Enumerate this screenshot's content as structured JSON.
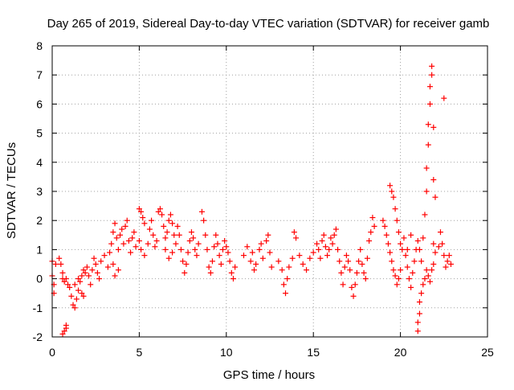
{
  "chart_data": {
    "type": "scatter",
    "title": "Day 265 of 2019, Sidereal Day-to-day VTEC variation (SDTVAR) for receiver gamb",
    "xlabel": "GPS time / hours",
    "ylabel": "SDTVAR / TECUs",
    "xlim": [
      0,
      25
    ],
    "ylim": [
      -2,
      8
    ],
    "xticks": [
      0,
      5,
      10,
      15,
      20,
      25
    ],
    "yticks": [
      -2,
      -1,
      0,
      1,
      2,
      3,
      4,
      5,
      6,
      7,
      8
    ],
    "grid": true,
    "marker": "+",
    "color": "#ff0000",
    "series": [
      {
        "name": "SDTVAR",
        "points": [
          [
            0.0,
            0.6
          ],
          [
            0.0,
            0.1
          ],
          [
            0.1,
            -0.2
          ],
          [
            0.1,
            -0.5
          ],
          [
            0.2,
            0.5
          ],
          [
            0.4,
            0.7
          ],
          [
            0.5,
            0.5
          ],
          [
            0.6,
            0.2
          ],
          [
            0.6,
            0.0
          ],
          [
            0.7,
            -0.1
          ],
          [
            0.8,
            0.0
          ],
          [
            0.9,
            -0.2
          ],
          [
            0.6,
            -1.9
          ],
          [
            0.7,
            -1.8
          ],
          [
            0.8,
            -1.7
          ],
          [
            0.8,
            -1.6
          ],
          [
            1.0,
            -0.3
          ],
          [
            1.1,
            -0.6
          ],
          [
            1.2,
            -0.9
          ],
          [
            1.3,
            -1.0
          ],
          [
            1.4,
            -0.7
          ],
          [
            1.5,
            -0.4
          ],
          [
            1.6,
            -0.1
          ],
          [
            1.7,
            0.1
          ],
          [
            1.8,
            0.3
          ],
          [
            1.9,
            0.2
          ],
          [
            2.0,
            0.4
          ],
          [
            1.3,
            -0.2
          ],
          [
            1.5,
            0.0
          ],
          [
            1.7,
            -0.5
          ],
          [
            1.8,
            -0.6
          ],
          [
            2.1,
            0.1
          ],
          [
            2.2,
            -0.2
          ],
          [
            2.3,
            0.3
          ],
          [
            2.4,
            0.7
          ],
          [
            2.5,
            0.5
          ],
          [
            2.6,
            0.2
          ],
          [
            2.7,
            0.0
          ],
          [
            2.8,
            0.6
          ],
          [
            3.0,
            0.8
          ],
          [
            3.2,
            0.4
          ],
          [
            3.3,
            0.9
          ],
          [
            3.4,
            1.2
          ],
          [
            3.5,
            1.6
          ],
          [
            3.6,
            1.9
          ],
          [
            3.7,
            1.4
          ],
          [
            3.8,
            1.0
          ],
          [
            3.9,
            1.5
          ],
          [
            4.0,
            1.7
          ],
          [
            4.1,
            1.2
          ],
          [
            4.2,
            1.8
          ],
          [
            4.3,
            2.0
          ],
          [
            4.4,
            1.3
          ],
          [
            4.5,
            0.9
          ],
          [
            4.6,
            1.4
          ],
          [
            4.7,
            1.6
          ],
          [
            4.8,
            1.1
          ],
          [
            3.5,
            0.5
          ],
          [
            3.6,
            0.1
          ],
          [
            3.8,
            0.3
          ],
          [
            5.0,
            2.4
          ],
          [
            5.1,
            2.3
          ],
          [
            5.2,
            2.1
          ],
          [
            5.3,
            1.9
          ],
          [
            5.0,
            1.3
          ],
          [
            5.1,
            1.0
          ],
          [
            5.3,
            0.8
          ],
          [
            5.5,
            1.2
          ],
          [
            5.6,
            1.7
          ],
          [
            5.7,
            2.0
          ],
          [
            5.8,
            1.5
          ],
          [
            5.9,
            1.1
          ],
          [
            6.0,
            1.3
          ],
          [
            6.1,
            2.3
          ],
          [
            6.2,
            2.4
          ],
          [
            6.3,
            2.2
          ],
          [
            6.4,
            1.8
          ],
          [
            6.5,
            1.4
          ],
          [
            6.6,
            1.6
          ],
          [
            6.7,
            2.0
          ],
          [
            6.8,
            2.2
          ],
          [
            6.9,
            1.9
          ],
          [
            7.0,
            1.5
          ],
          [
            7.1,
            1.2
          ],
          [
            6.5,
            1.0
          ],
          [
            6.7,
            0.7
          ],
          [
            6.9,
            0.9
          ],
          [
            7.2,
            1.8
          ],
          [
            7.3,
            1.5
          ],
          [
            7.4,
            1.0
          ],
          [
            7.5,
            0.6
          ],
          [
            7.6,
            0.2
          ],
          [
            7.7,
            0.5
          ],
          [
            7.8,
            0.9
          ],
          [
            7.9,
            1.3
          ],
          [
            8.0,
            1.6
          ],
          [
            8.1,
            1.4
          ],
          [
            8.2,
            1.0
          ],
          [
            8.3,
            0.8
          ],
          [
            8.4,
            1.2
          ],
          [
            8.6,
            2.3
          ],
          [
            8.7,
            2.0
          ],
          [
            8.8,
            1.5
          ],
          [
            8.9,
            1.0
          ],
          [
            9.0,
            0.4
          ],
          [
            9.1,
            0.2
          ],
          [
            9.2,
            0.6
          ],
          [
            9.3,
            1.1
          ],
          [
            9.4,
            1.5
          ],
          [
            9.5,
            1.2
          ],
          [
            9.6,
            0.8
          ],
          [
            9.7,
            0.5
          ],
          [
            9.8,
            1.0
          ],
          [
            9.9,
            1.3
          ],
          [
            10.0,
            1.1
          ],
          [
            10.1,
            0.9
          ],
          [
            10.2,
            0.6
          ],
          [
            10.3,
            0.2
          ],
          [
            10.4,
            0.0
          ],
          [
            10.5,
            0.4
          ],
          [
            11.0,
            0.8
          ],
          [
            11.2,
            1.1
          ],
          [
            11.4,
            0.6
          ],
          [
            11.5,
            0.9
          ],
          [
            11.6,
            0.3
          ],
          [
            11.7,
            0.5
          ],
          [
            11.9,
            1.0
          ],
          [
            12.0,
            1.2
          ],
          [
            12.1,
            0.7
          ],
          [
            12.3,
            1.3
          ],
          [
            12.4,
            1.5
          ],
          [
            12.5,
            0.9
          ],
          [
            12.6,
            0.4
          ],
          [
            13.0,
            0.6
          ],
          [
            13.2,
            0.3
          ],
          [
            13.3,
            -0.2
          ],
          [
            13.4,
            -0.5
          ],
          [
            13.5,
            0.0
          ],
          [
            13.6,
            0.4
          ],
          [
            13.8,
            0.7
          ],
          [
            13.9,
            1.6
          ],
          [
            14.0,
            1.4
          ],
          [
            14.2,
            0.8
          ],
          [
            14.4,
            0.5
          ],
          [
            14.6,
            0.3
          ],
          [
            14.8,
            0.7
          ],
          [
            15.0,
            0.9
          ],
          [
            15.2,
            1.2
          ],
          [
            15.3,
            1.0
          ],
          [
            15.4,
            0.7
          ],
          [
            15.5,
            1.3
          ],
          [
            15.6,
            1.5
          ],
          [
            15.7,
            1.1
          ],
          [
            15.8,
            0.8
          ],
          [
            15.9,
            1.0
          ],
          [
            16.0,
            1.4
          ],
          [
            16.1,
            1.2
          ],
          [
            16.2,
            1.5
          ],
          [
            16.3,
            1.7
          ],
          [
            16.4,
            1.0
          ],
          [
            16.5,
            0.6
          ],
          [
            16.6,
            0.2
          ],
          [
            16.7,
            -0.2
          ],
          [
            16.8,
            0.4
          ],
          [
            16.9,
            0.8
          ],
          [
            17.0,
            0.6
          ],
          [
            17.1,
            0.3
          ],
          [
            17.2,
            -0.3
          ],
          [
            17.3,
            -0.6
          ],
          [
            17.4,
            -0.2
          ],
          [
            17.5,
            0.2
          ],
          [
            17.6,
            0.6
          ],
          [
            17.7,
            1.0
          ],
          [
            17.8,
            0.5
          ],
          [
            17.9,
            0.2
          ],
          [
            18.0,
            0.0
          ],
          [
            18.1,
            0.7
          ],
          [
            18.2,
            1.3
          ],
          [
            18.3,
            1.6
          ],
          [
            18.4,
            2.1
          ],
          [
            18.5,
            1.8
          ],
          [
            19.0,
            2.0
          ],
          [
            19.1,
            1.8
          ],
          [
            19.2,
            1.5
          ],
          [
            19.3,
            1.2
          ],
          [
            19.4,
            0.9
          ],
          [
            19.5,
            0.6
          ],
          [
            19.6,
            0.3
          ],
          [
            19.7,
            0.1
          ],
          [
            19.8,
            -0.2
          ],
          [
            19.9,
            0.0
          ],
          [
            20.0,
            0.3
          ],
          [
            19.4,
            3.2
          ],
          [
            19.5,
            3.0
          ],
          [
            19.6,
            2.8
          ],
          [
            19.7,
            2.4
          ],
          [
            19.8,
            2.0
          ],
          [
            19.9,
            1.6
          ],
          [
            20.0,
            1.2
          ],
          [
            20.1,
            1.0
          ],
          [
            20.3,
            0.8
          ],
          [
            20.4,
            0.4
          ],
          [
            20.5,
            0.0
          ],
          [
            20.6,
            -0.3
          ],
          [
            20.7,
            0.2
          ],
          [
            20.8,
            0.6
          ],
          [
            20.9,
            1.0
          ],
          [
            20.2,
            1.4
          ],
          [
            20.4,
            1.0
          ],
          [
            20.6,
            1.5
          ],
          [
            21.0,
            -1.8
          ],
          [
            21.0,
            -1.5
          ],
          [
            21.1,
            -1.2
          ],
          [
            21.1,
            -0.8
          ],
          [
            21.2,
            -0.5
          ],
          [
            21.3,
            -0.2
          ],
          [
            21.4,
            0.0
          ],
          [
            21.5,
            0.3
          ],
          [
            21.6,
            0.1
          ],
          [
            21.7,
            -0.1
          ],
          [
            21.8,
            0.3
          ],
          [
            21.9,
            0.5
          ],
          [
            21.0,
            1.3
          ],
          [
            21.1,
            1.0
          ],
          [
            21.2,
            0.6
          ],
          [
            21.3,
            1.4
          ],
          [
            21.4,
            2.2
          ],
          [
            21.5,
            3.0
          ],
          [
            21.5,
            3.8
          ],
          [
            21.6,
            4.6
          ],
          [
            21.6,
            5.3
          ],
          [
            21.7,
            6.0
          ],
          [
            21.7,
            6.6
          ],
          [
            21.8,
            7.0
          ],
          [
            21.8,
            7.3
          ],
          [
            21.9,
            5.2
          ],
          [
            21.9,
            3.4
          ],
          [
            22.0,
            2.8
          ],
          [
            21.9,
            1.2
          ],
          [
            22.0,
            0.9
          ],
          [
            22.2,
            1.1
          ],
          [
            22.3,
            1.6
          ],
          [
            22.4,
            1.2
          ],
          [
            22.5,
            0.8
          ],
          [
            22.6,
            0.4
          ],
          [
            22.7,
            0.6
          ],
          [
            22.8,
            0.8
          ],
          [
            22.9,
            0.5
          ],
          [
            22.5,
            6.2
          ]
        ]
      }
    ]
  }
}
